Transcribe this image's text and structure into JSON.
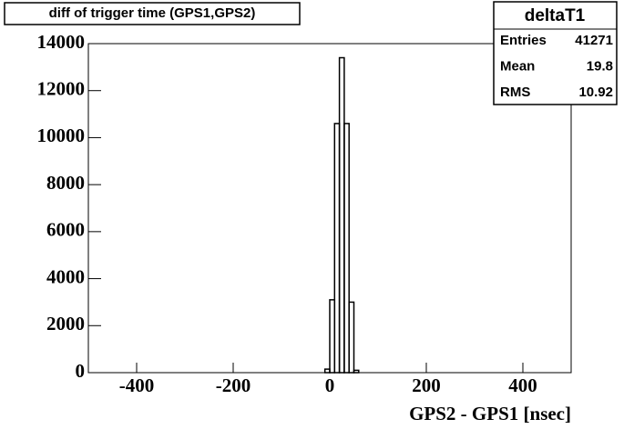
{
  "chart_data": {
    "type": "histogram",
    "title": "diff of trigger time (GPS1,GPS2)",
    "x_label": "GPS2 - GPS1 [nsec]",
    "bins": [
      -10,
      0,
      10,
      20,
      30,
      40,
      50,
      60
    ],
    "values": [
      150,
      3100,
      10600,
      13400,
      10600,
      3000,
      100
    ],
    "color": "#000000",
    "xlim": [
      -500,
      500
    ],
    "xticks": [
      -400,
      -200,
      0,
      200,
      400
    ],
    "ylim": [
      0,
      14000
    ],
    "yticks": [
      0,
      2000,
      4000,
      6000,
      8000,
      10000,
      12000,
      14000
    ],
    "stats": {
      "title": "deltaT1",
      "rows": [
        [
          "Entries",
          41271
        ],
        [
          "Mean",
          19.8
        ],
        [
          "RMS",
          10.92
        ]
      ]
    }
  }
}
